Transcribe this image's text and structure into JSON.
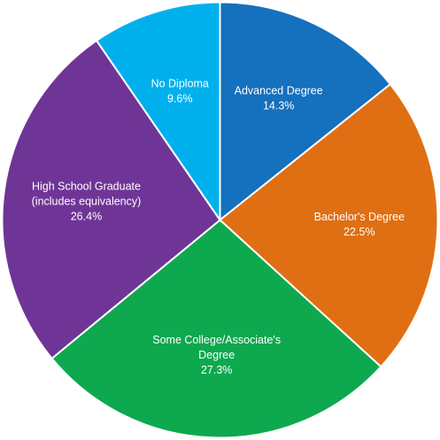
{
  "chart_data": {
    "type": "pie",
    "title": "",
    "start_angle_deg": 0,
    "direction": "clockwise",
    "legend": "none",
    "label_placement": "inside",
    "slices": [
      {
        "label_lines": [
          "Advanced Degree"
        ],
        "value_label": "14.3%",
        "value": 14.3,
        "color": "#1570BD"
      },
      {
        "label_lines": [
          "Bachelor's Degree"
        ],
        "value_label": "22.5%",
        "value": 22.5,
        "color": "#DF6F12"
      },
      {
        "label_lines": [
          "Some College/Associate's",
          "Degree"
        ],
        "value_label": "27.3%",
        "value": 27.3,
        "color": "#0EA84F"
      },
      {
        "label_lines": [
          "High School Graduate",
          "(includes equivalency)"
        ],
        "value_label": "26.4%",
        "value": 26.4,
        "color": "#6F3596"
      },
      {
        "label_lines": [
          "No Diploma"
        ],
        "value_label": "9.6%",
        "value": 9.6,
        "color": "#00B0ED"
      }
    ]
  }
}
